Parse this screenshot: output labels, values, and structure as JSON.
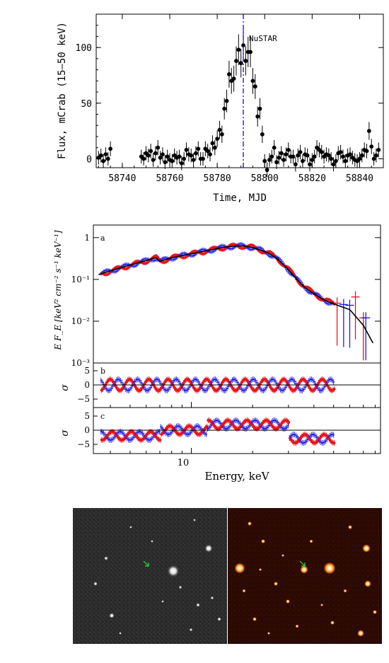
{
  "lightcurve": {
    "ylabel": "Flux, mCrab (15–50 keV)",
    "xlabel": "Time, MJD",
    "annotation": "NuSTAR",
    "annotation_color": "#1a1aff",
    "xticks": [
      "58740",
      "58760",
      "58780",
      "58800",
      "58820",
      "58840"
    ],
    "yticks": [
      "0",
      "50",
      "100"
    ]
  },
  "spectrum": {
    "ylabel": "E F_E [keV² cm⁻² s⁻¹ keV⁻¹]",
    "xlabel": "Energy, keV",
    "xtick": "10",
    "panel_a": {
      "label": "a",
      "yticks": [
        "1",
        "10⁻¹",
        "10⁻²",
        "10⁻³"
      ]
    },
    "panel_b": {
      "label": "b",
      "ylabel": "σ",
      "yticks": [
        "5",
        "0",
        "−5"
      ]
    },
    "panel_c": {
      "label": "c",
      "ylabel": "σ",
      "yticks": [
        "5",
        "0",
        "−5"
      ]
    },
    "colors": {
      "fpma": "#e8141c",
      "fpmb": "#1a1ae6",
      "model": "#000000"
    }
  },
  "images": {
    "left_panel": "grayscale-sky",
    "right_panel": "color-sky",
    "arrow_color": "#33dd44"
  },
  "chart_data": [
    {
      "type": "scatter",
      "x": [
        58730,
        58731,
        58732,
        58733,
        58734,
        58735,
        58748,
        58749,
        58750,
        58751,
        58752,
        58753,
        58754,
        58755,
        58756,
        58757,
        58758,
        58759,
        58760,
        58761,
        58762,
        58763,
        58764,
        58765,
        58766,
        58767,
        58768,
        58769,
        58770,
        58771,
        58772,
        58773,
        58774,
        58775,
        58776,
        58777,
        58778,
        58779,
        58780,
        58781,
        58782,
        58783,
        58784,
        58785,
        58786,
        58787,
        58788,
        58789,
        58790,
        58791,
        58792,
        58793,
        58794,
        58795,
        58796,
        58797,
        58798,
        58799,
        58800,
        58801,
        58802,
        58803,
        58804,
        58805,
        58806,
        58807,
        58808,
        58809,
        58810,
        58811,
        58812,
        58813,
        58814,
        58815,
        58816,
        58817,
        58818,
        58819,
        58820,
        58821,
        58822,
        58823,
        58824,
        58825,
        58826,
        58827,
        58828,
        58829,
        58830,
        58831,
        58832,
        58833,
        58834,
        58835,
        58836,
        58837,
        58838,
        58839,
        58840,
        58841,
        58842,
        58843,
        58844,
        58845,
        58846,
        58847,
        58848
      ],
      "y": [
        1,
        3,
        -2,
        4,
        0,
        9,
        2,
        0,
        5,
        3,
        7,
        -1,
        5,
        10,
        1,
        4,
        -3,
        2,
        -1,
        -2,
        3,
        1,
        2,
        -4,
        0,
        8,
        4,
        3,
        -1,
        5,
        9,
        0,
        0,
        9,
        7,
        4,
        14,
        10,
        18,
        26,
        22,
        45,
        52,
        76,
        70,
        72,
        88,
        98,
        86,
        102,
        88,
        96,
        96,
        70,
        65,
        38,
        45,
        22,
        -2,
        -10,
        -1,
        2,
        10,
        -3,
        1,
        5,
        -1,
        4,
        8,
        2,
        2,
        -5,
        3,
        6,
        -2,
        4,
        3,
        -5,
        -1,
        2,
        10,
        8,
        6,
        2,
        4,
        3,
        0,
        -5,
        -2,
        5,
        6,
        2,
        -2,
        3,
        4,
        1,
        -1,
        -2,
        0,
        3,
        8,
        7,
        25,
        11,
        0,
        3,
        8
      ],
      "xlabel": "Time, MJD",
      "ylabel": "Flux, mCrab (15–50 keV)",
      "xlim": [
        58729,
        58850
      ],
      "ylim": [
        -8,
        130
      ],
      "vline": 58791
    },
    {
      "type": "line",
      "log_x": true,
      "log_y": true,
      "x": [
        3.5,
        4,
        4.5,
        5,
        5.5,
        6,
        6.4,
        6.7,
        7,
        7.5,
        8,
        9,
        10,
        11,
        12,
        13,
        14,
        15,
        16,
        17,
        18,
        20,
        22,
        24,
        26,
        28,
        30,
        33,
        36,
        40,
        45,
        50,
        55,
        60,
        70,
        78
      ],
      "model": [
        0.13,
        0.16,
        0.19,
        0.22,
        0.25,
        0.28,
        0.31,
        0.33,
        0.27,
        0.3,
        0.33,
        0.37,
        0.41,
        0.45,
        0.49,
        0.53,
        0.57,
        0.6,
        0.62,
        0.63,
        0.63,
        0.58,
        0.5,
        0.42,
        0.33,
        0.24,
        0.17,
        0.1,
        0.065,
        0.045,
        0.032,
        0.026,
        0.022,
        0.019,
        0.008,
        0.003
      ],
      "xlabel": "Energy, keV",
      "ylabel": "E F_E",
      "ylim": [
        0.001,
        2
      ]
    }
  ]
}
